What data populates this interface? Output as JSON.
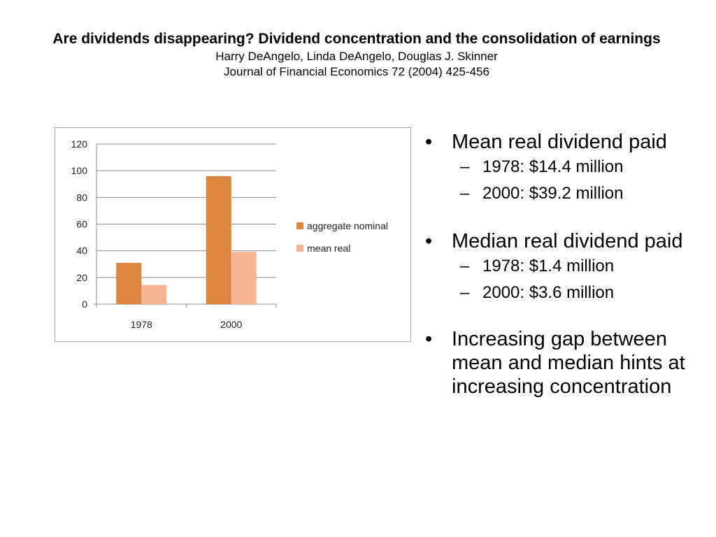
{
  "header": {
    "title": "Are dividends disappearing? Dividend concentration and the consolidation of earnings",
    "authors": "Harry DeAngelo, Linda DeAngelo, Douglas J. Skinner",
    "journal": "Journal of Financial Economics 72 (2004) 425-456"
  },
  "colors": {
    "aggregate_nominal": "#D9843F",
    "mean_real": "#F7B593",
    "grid": "#8c8c8c"
  },
  "chart_data": {
    "type": "bar",
    "categories": [
      "1978",
      "2000"
    ],
    "series": [
      {
        "name": "aggregate nominal",
        "values": [
          31,
          96
        ]
      },
      {
        "name": "mean real",
        "values": [
          14.4,
          39.2
        ]
      }
    ],
    "yticks": [
      "0",
      "20",
      "40",
      "60",
      "80",
      "100",
      "120"
    ],
    "ylim": [
      0,
      120
    ],
    "title": "",
    "xlabel": "",
    "ylabel": "",
    "legend_position": "right",
    "grid": true
  },
  "bullets": [
    {
      "text": "Mean real dividend paid",
      "subs": [
        "1978:  $14.4 million",
        "2000:  $39.2 million"
      ]
    },
    {
      "text": "Median real dividend paid",
      "subs": [
        "1978:  $1.4 million",
        "2000:  $3.6 million"
      ]
    },
    {
      "text": "Increasing gap between mean and median hints at increasing concentration",
      "subs": []
    }
  ],
  "bullet_symbol": "•",
  "dash_symbol": "–"
}
